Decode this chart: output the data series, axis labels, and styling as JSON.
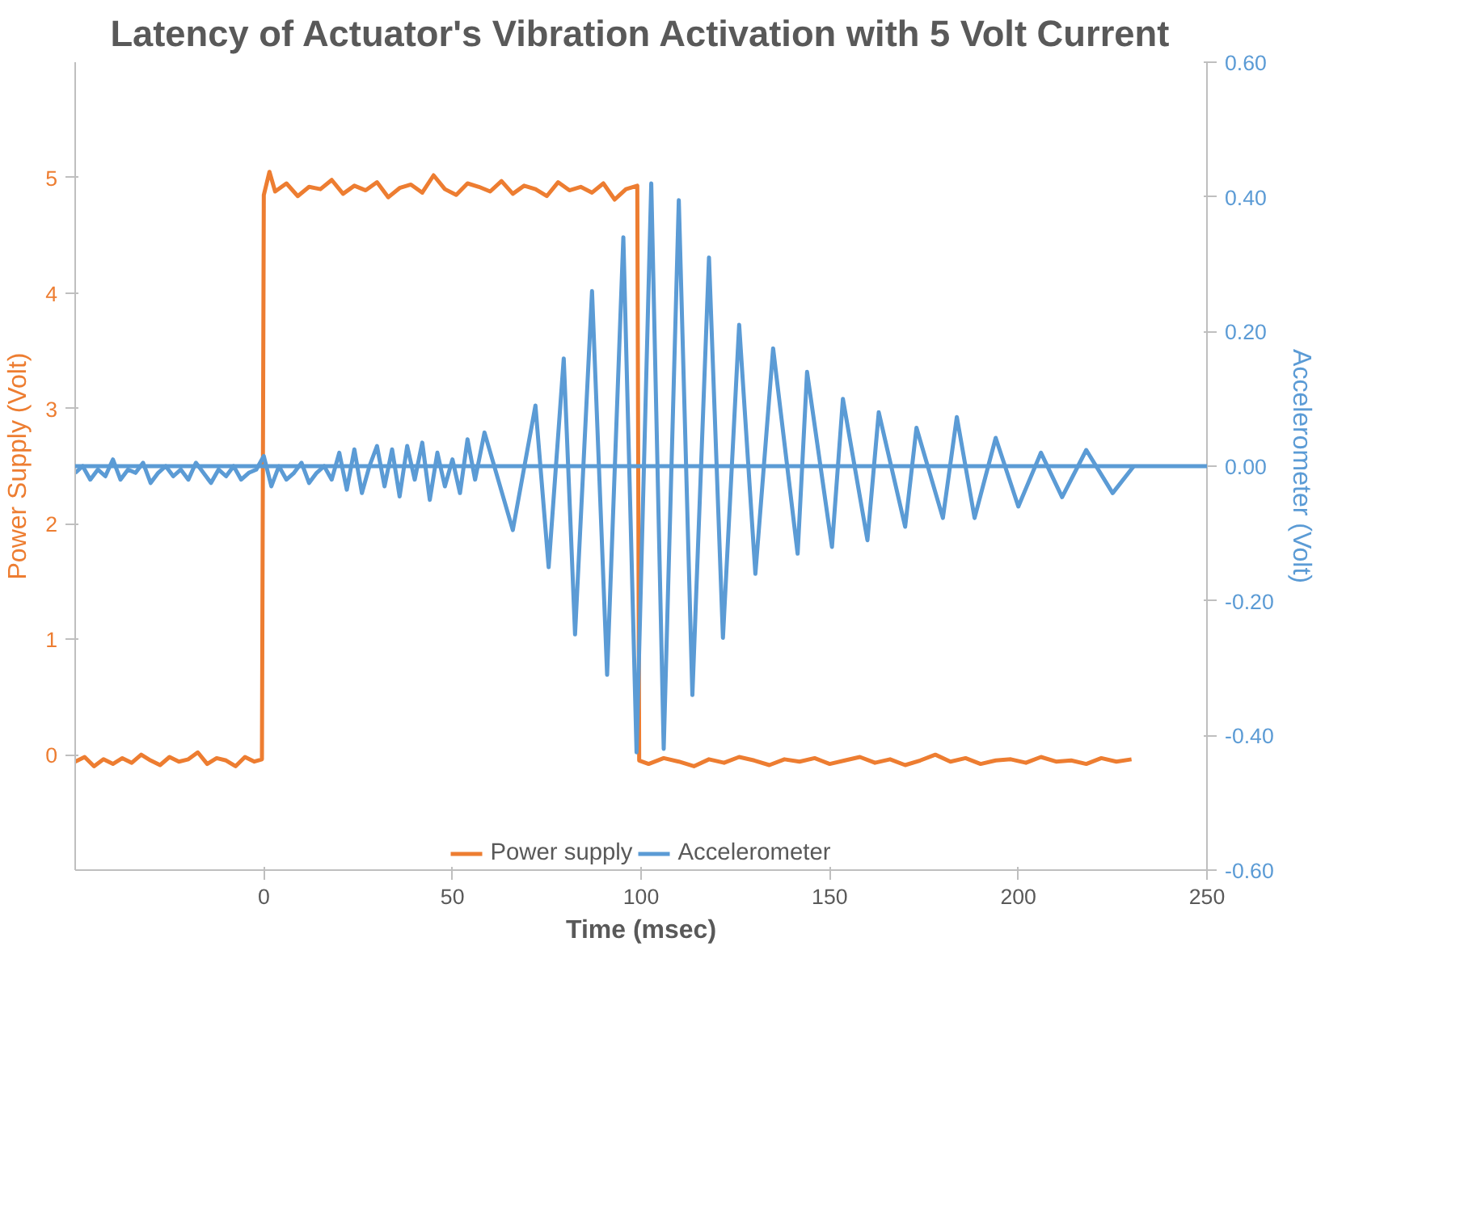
{
  "chart_data": {
    "type": "line",
    "title": "Latency of Actuator's Vibration Activation with 5 Volt Current",
    "xlabel": "Time (msec)",
    "ylabel": "Power Supply (Volt)",
    "y2label": "Accelerometer (Volt)",
    "xlim": [
      -50,
      250
    ],
    "xticks": [
      0,
      50,
      100,
      150,
      200,
      250
    ],
    "ylim": [
      -1,
      6
    ],
    "yticks": [
      0,
      1,
      2,
      3,
      4,
      5
    ],
    "y2lim": [
      -0.6,
      0.6
    ],
    "y2ticks": [
      {
        "value": -0.6,
        "label": "-0.60"
      },
      {
        "value": -0.4,
        "label": "-0.40"
      },
      {
        "value": -0.2,
        "label": "-0.20"
      },
      {
        "value": 0,
        "label": "0.00"
      },
      {
        "value": 0.2,
        "label": "0.20"
      },
      {
        "value": 0.4,
        "label": "0.40"
      },
      {
        "value": 0.6,
        "label": "0.60"
      }
    ],
    "grid": false,
    "legend": "bottom",
    "marker": "none",
    "line_style": "solid",
    "ref_lines": [
      {
        "axis": "y2",
        "value": 0,
        "color": "#5b9bd5"
      }
    ],
    "series": [
      {
        "name": "Power supply",
        "color": "#ed7d31",
        "x": [
          -50,
          -47.5,
          -45,
          -42.5,
          -40,
          -37.5,
          -35,
          -32.5,
          -30,
          -27.5,
          -25,
          -22.5,
          -20,
          -17.5,
          -15,
          -12.5,
          -10,
          -7.5,
          -5,
          -2.5,
          -0.5,
          0,
          1.5,
          3,
          6,
          9,
          12,
          15,
          18,
          21,
          24,
          27,
          30,
          33,
          36,
          39,
          42,
          45,
          48,
          51,
          54,
          57,
          60,
          63,
          66,
          69,
          72,
          75,
          78,
          81,
          84,
          87,
          90,
          93,
          96,
          99,
          99.5,
          102,
          106,
          110,
          114,
          118,
          122,
          126,
          130,
          134,
          138,
          142,
          146,
          150,
          154,
          158,
          162,
          166,
          170,
          174,
          178,
          182,
          186,
          190,
          194,
          198,
          202,
          206,
          210,
          214,
          218,
          222,
          226,
          230
        ],
        "values": [
          -0.06,
          -0.02,
          -0.1,
          -0.04,
          -0.08,
          -0.03,
          -0.07,
          0.0,
          -0.05,
          -0.09,
          -0.02,
          -0.06,
          -0.04,
          0.02,
          -0.08,
          -0.03,
          -0.05,
          -0.1,
          -0.02,
          -0.06,
          -0.04,
          4.85,
          5.05,
          4.88,
          4.95,
          4.84,
          4.92,
          4.9,
          4.98,
          4.86,
          4.93,
          4.89,
          4.96,
          4.83,
          4.91,
          4.94,
          4.87,
          5.02,
          4.9,
          4.85,
          4.95,
          4.92,
          4.88,
          4.97,
          4.86,
          4.93,
          4.9,
          4.84,
          4.96,
          4.89,
          4.92,
          4.87,
          4.95,
          4.81,
          4.9,
          4.93,
          -0.05,
          -0.08,
          -0.03,
          -0.06,
          -0.1,
          -0.04,
          -0.07,
          -0.02,
          -0.05,
          -0.09,
          -0.04,
          -0.06,
          -0.03,
          -0.08,
          -0.05,
          -0.02,
          -0.07,
          -0.04,
          -0.09,
          -0.05,
          0.0,
          -0.06,
          -0.03,
          -0.08,
          -0.05,
          -0.04,
          -0.07,
          -0.02,
          -0.06,
          -0.05,
          -0.08,
          -0.03,
          -0.06,
          -0.04
        ]
      },
      {
        "name": "Accelerometer",
        "color": "#5b9bd5",
        "axis": "y2",
        "x": [
          -50,
          -48,
          -46,
          -44,
          -42,
          -40,
          -38,
          -36,
          -34,
          -32,
          -30,
          -28,
          -26,
          -24,
          -22,
          -20,
          -18,
          -16,
          -14,
          -12,
          -10,
          -8,
          -6,
          -4,
          -2,
          0,
          2,
          4,
          6,
          8,
          10,
          12,
          14,
          16,
          18,
          20,
          22,
          24,
          26,
          28,
          30,
          32,
          34,
          36,
          38,
          40,
          42,
          44,
          46,
          48,
          50,
          52,
          54,
          56,
          58.5,
          66,
          72,
          75.5,
          79.5,
          82.5,
          87,
          91,
          95.3,
          98.8,
          102.7,
          106,
          110,
          113.6,
          118,
          121.7,
          126,
          130.3,
          135,
          141.5,
          144,
          150.6,
          153.5,
          160,
          163,
          170,
          173,
          180,
          183.7,
          188.4,
          194,
          200,
          206,
          211.6,
          218,
          225,
          230.6
        ],
        "values": [
          -0.01,
          0.0,
          -0.02,
          -0.005,
          -0.015,
          0.01,
          -0.02,
          -0.005,
          -0.01,
          0.005,
          -0.025,
          -0.01,
          0.0,
          -0.015,
          -0.005,
          -0.02,
          0.005,
          -0.01,
          -0.025,
          -0.005,
          -0.015,
          0.0,
          -0.02,
          -0.01,
          -0.005,
          0.015,
          -0.03,
          0.0,
          -0.02,
          -0.01,
          0.005,
          -0.025,
          -0.01,
          0.0,
          -0.02,
          0.02,
          -0.035,
          0.025,
          -0.04,
          0.0,
          0.03,
          -0.03,
          0.025,
          -0.045,
          0.03,
          -0.02,
          0.035,
          -0.05,
          0.02,
          -0.03,
          0.01,
          -0.04,
          0.04,
          -0.02,
          0.05,
          -0.095,
          0.09,
          -0.15,
          0.16,
          -0.25,
          0.26,
          -0.31,
          0.34,
          -0.425,
          0.42,
          -0.42,
          0.395,
          -0.34,
          0.31,
          -0.255,
          0.21,
          -0.16,
          0.175,
          -0.13,
          0.14,
          -0.12,
          0.1,
          -0.11,
          0.08,
          -0.09,
          0.057,
          -0.077,
          0.073,
          -0.077,
          0.042,
          -0.06,
          0.02,
          -0.046,
          0.024,
          -0.04,
          0.0
        ]
      }
    ]
  }
}
